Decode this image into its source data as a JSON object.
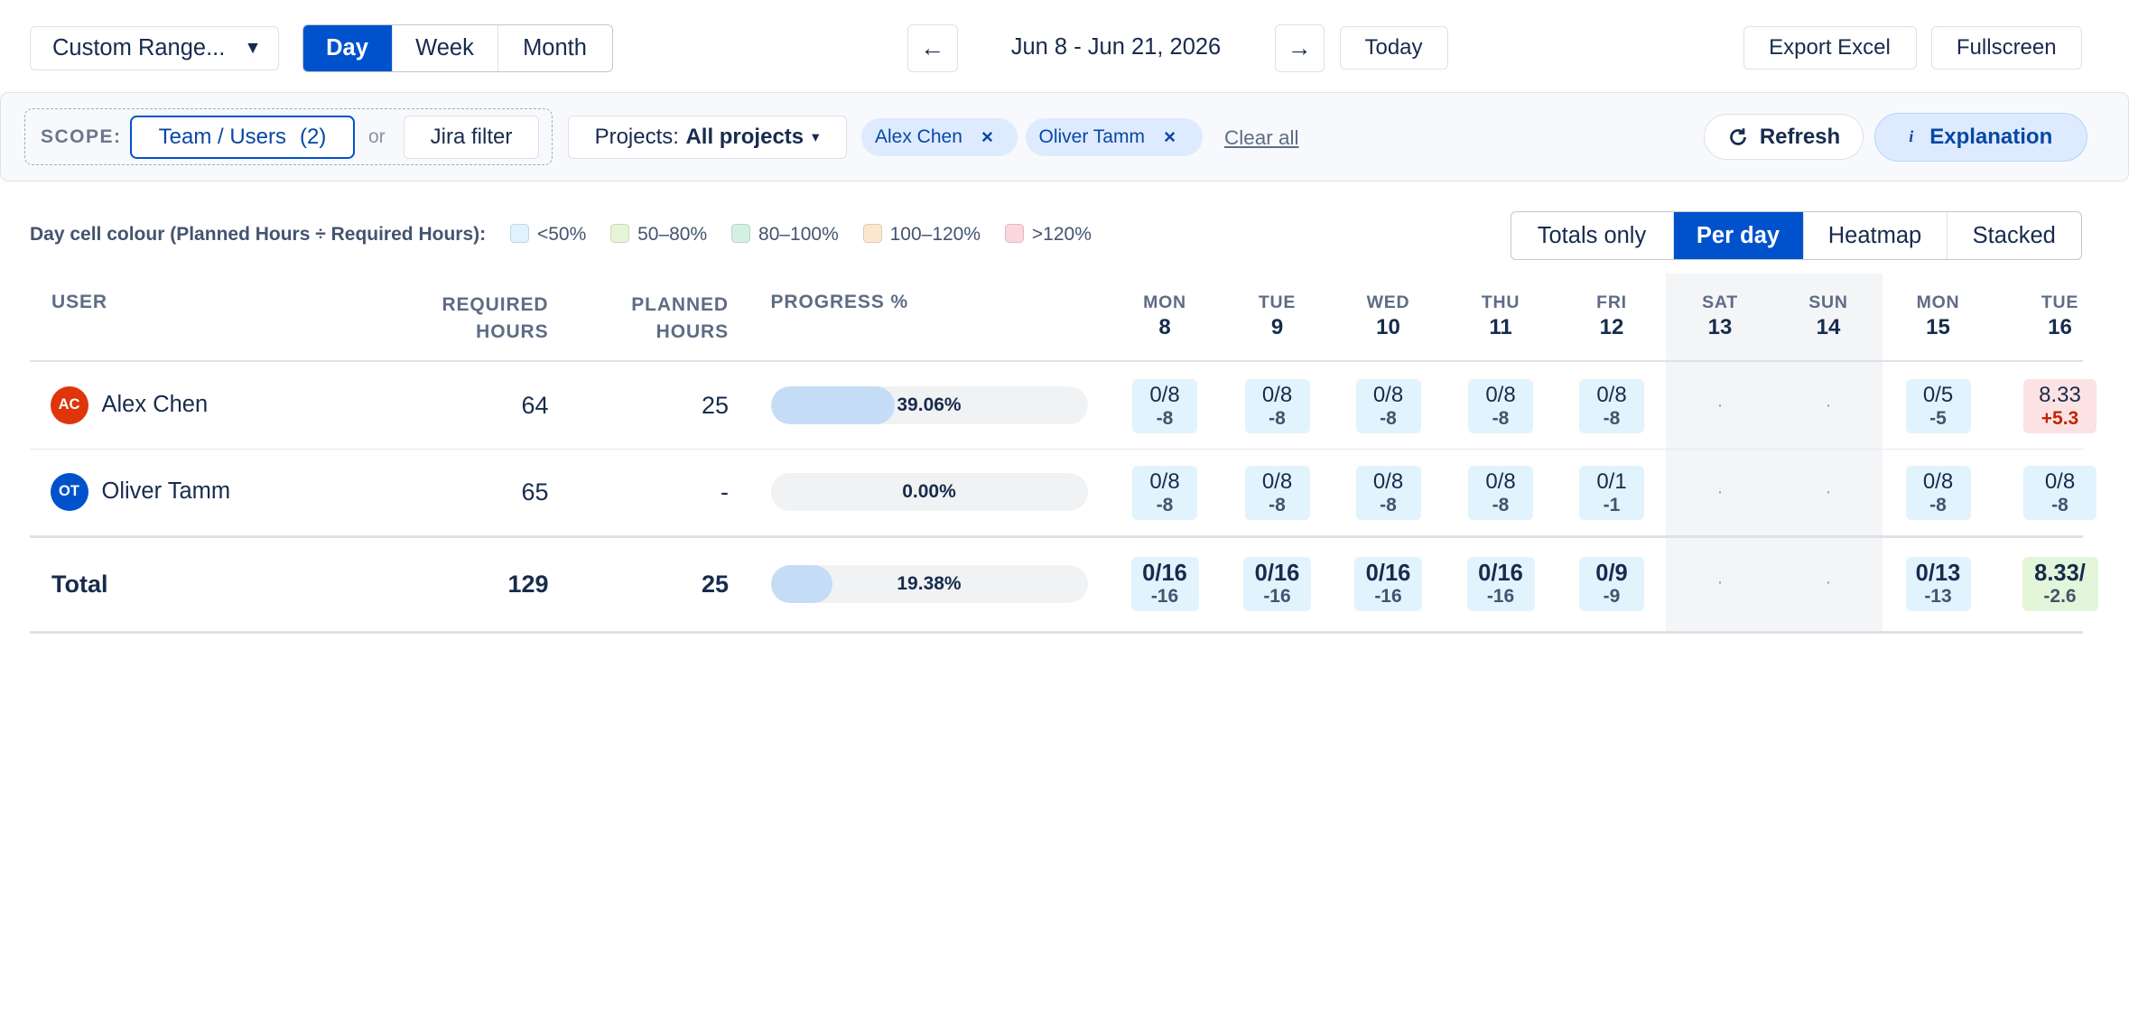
{
  "toolbar": {
    "range_label": "Custom Range...",
    "range_caret": "▼",
    "views": [
      "Day",
      "Week",
      "Month"
    ],
    "active_view": "Day",
    "date_range": "Jun 8 - Jun 21, 2026",
    "prev_arrow": "←",
    "next_arrow": "→",
    "today_label": "Today",
    "export_label": "Export Excel",
    "fullscreen_label": "Fullscreen"
  },
  "filters": {
    "scope_label": "SCOPE:",
    "team_users_label": "Team / Users",
    "team_users_count": "(2)",
    "or_label": "or",
    "jira_filter_label": "Jira filter",
    "projects_prefix": "Projects:",
    "projects_value": "All projects",
    "projects_caret": "▾",
    "chips": [
      {
        "label": "Alex Chen",
        "remove": "×"
      },
      {
        "label": "Oliver Tamm",
        "remove": "×"
      }
    ],
    "clear_all": "Clear all",
    "refresh_label": "Refresh",
    "explanation_label": "Explanation"
  },
  "legend": {
    "caption": "Day cell colour (Planned Hours ÷ Required Hours):",
    "items": [
      {
        "label": "<50%",
        "color": "#dff2fd"
      },
      {
        "label": "50–80%",
        "color": "#e6f5d8"
      },
      {
        "label": "80–100%",
        "color": "#d3f1e2"
      },
      {
        "label": "100–120%",
        "color": "#fde6cf"
      },
      {
        "label": ">120%",
        "color": "#fbd7db"
      }
    ]
  },
  "display_modes": [
    "Totals only",
    "Per day",
    "Heatmap",
    "Stacked"
  ],
  "active_display_mode": "Per day",
  "table": {
    "headers": {
      "user": "USER",
      "required_1": "REQUIRED",
      "required_2": "HOURS",
      "planned_1": "PLANNED",
      "planned_2": "HOURS",
      "progress": "PROGRESS %"
    },
    "days": [
      {
        "name": "MON",
        "date": "8",
        "weekend": false
      },
      {
        "name": "TUE",
        "date": "9",
        "weekend": false
      },
      {
        "name": "WED",
        "date": "10",
        "weekend": false
      },
      {
        "name": "THU",
        "date": "11",
        "weekend": false
      },
      {
        "name": "FRI",
        "date": "12",
        "weekend": false
      },
      {
        "name": "SAT",
        "date": "13",
        "weekend": true
      },
      {
        "name": "SUN",
        "date": "14",
        "weekend": true
      },
      {
        "name": "MON",
        "date": "15",
        "weekend": false
      },
      {
        "name": "TUE",
        "date": "16",
        "weekend": false
      }
    ],
    "rows": [
      {
        "initials": "AC",
        "avatar_color": "#de350b",
        "name": "Alex Chen",
        "required": "64",
        "planned": "25",
        "progress_value": 39.06,
        "progress_label": "39.06%",
        "cells": [
          {
            "a": "0/8",
            "b": "-8"
          },
          {
            "a": "0/8",
            "b": "-8"
          },
          {
            "a": "0/8",
            "b": "-8"
          },
          {
            "a": "0/8",
            "b": "-8"
          },
          {
            "a": "0/8",
            "b": "-8"
          },
          {
            "a": "·",
            "b": ""
          },
          {
            "a": "·",
            "b": ""
          },
          {
            "a": "0/5",
            "b": "-5"
          },
          {
            "a": "8.33",
            "b": "+5.3",
            "tone": "red"
          }
        ]
      },
      {
        "initials": "OT",
        "avatar_color": "#0052cc",
        "name": "Oliver Tamm",
        "required": "65",
        "planned": "-",
        "progress_value": 0,
        "progress_label": "0.00%",
        "cells": [
          {
            "a": "0/8",
            "b": "-8"
          },
          {
            "a": "0/8",
            "b": "-8"
          },
          {
            "a": "0/8",
            "b": "-8"
          },
          {
            "a": "0/8",
            "b": "-8"
          },
          {
            "a": "0/1",
            "b": "-1"
          },
          {
            "a": "·",
            "b": ""
          },
          {
            "a": "·",
            "b": ""
          },
          {
            "a": "0/8",
            "b": "-8"
          },
          {
            "a": "0/8",
            "b": "-8"
          }
        ]
      }
    ],
    "total": {
      "label": "Total",
      "required": "129",
      "planned": "25",
      "progress_value": 19.38,
      "progress_label": "19.38%",
      "cells": [
        {
          "a": "0/16",
          "b": "-16"
        },
        {
          "a": "0/16",
          "b": "-16"
        },
        {
          "a": "0/16",
          "b": "-16"
        },
        {
          "a": "0/16",
          "b": "-16"
        },
        {
          "a": "0/9",
          "b": "-9"
        },
        {
          "a": "·",
          "b": ""
        },
        {
          "a": "·",
          "b": ""
        },
        {
          "a": "0/13",
          "b": "-13"
        },
        {
          "a": "8.33/",
          "b": "-2.6",
          "tone": "green"
        }
      ]
    }
  }
}
